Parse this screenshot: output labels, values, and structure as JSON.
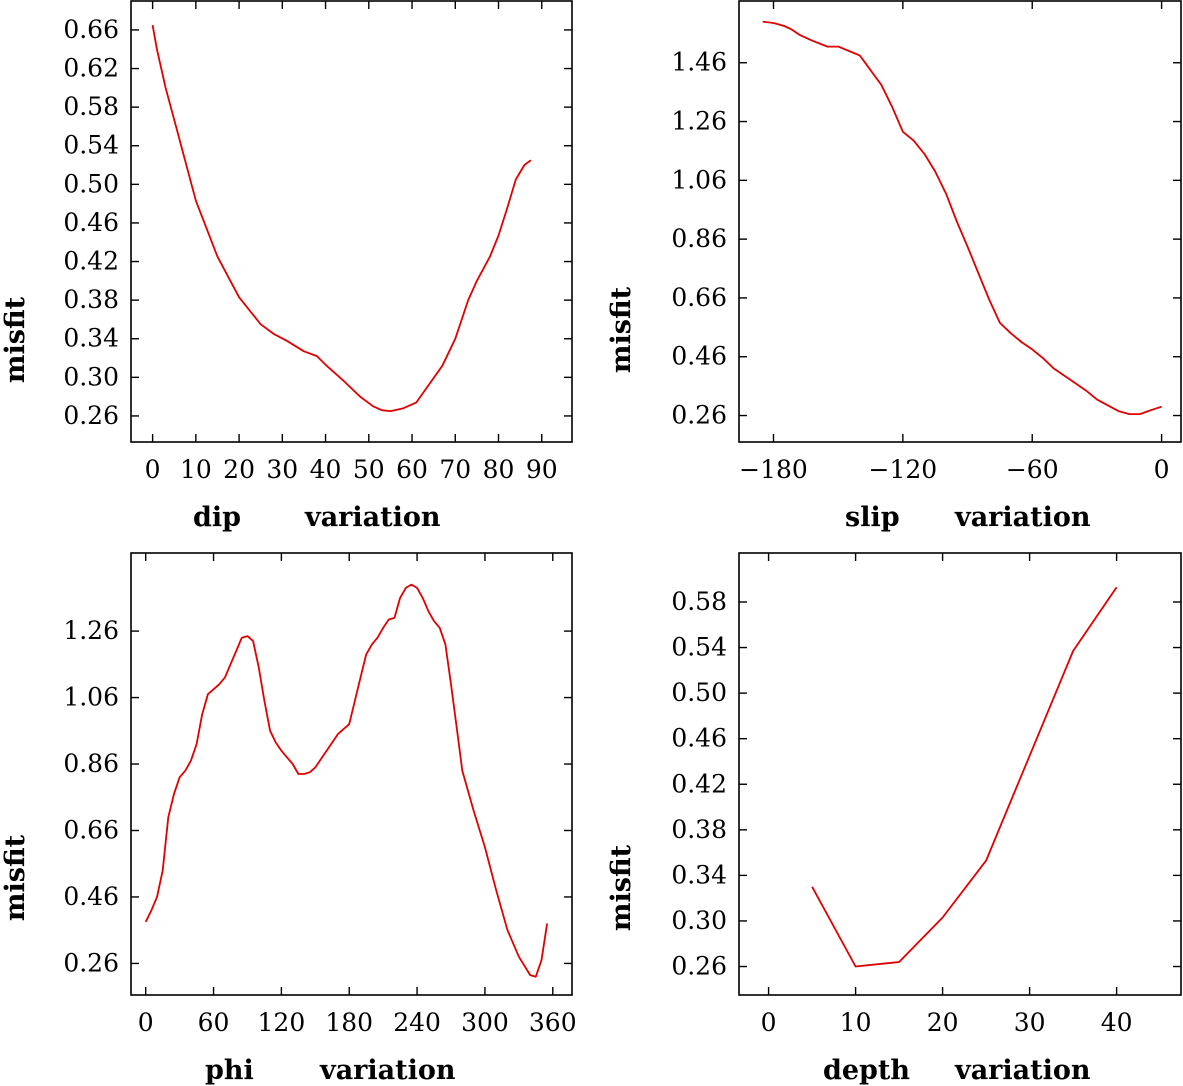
{
  "chart_data": [
    {
      "type": "line",
      "id": "dip",
      "xlabel_left": "dip",
      "xlabel_right": "variation",
      "ylabel": "misfit",
      "xlim": [
        -5,
        97
      ],
      "ylim": [
        0.233,
        0.69
      ],
      "xticks": [
        0,
        10,
        20,
        30,
        40,
        50,
        60,
        70,
        80,
        90
      ],
      "xticklabels": [
        "0",
        "10",
        "20",
        "30",
        "40",
        "50",
        "60",
        "70",
        "80",
        "90"
      ],
      "yticks": [
        0.26,
        0.3,
        0.34,
        0.38,
        0.42,
        0.46,
        0.5,
        0.54,
        0.58,
        0.62,
        0.66
      ],
      "yticklabels": [
        "0.26",
        "0.30",
        "0.34",
        "0.38",
        "0.42",
        "0.46",
        "0.50",
        "0.54",
        "0.58",
        "0.62",
        "0.66"
      ],
      "series": [
        {
          "name": "misfit",
          "color": "#e00000",
          "x": [
            0,
            1,
            3,
            6,
            10,
            15,
            20,
            25,
            28,
            31,
            35,
            38,
            40,
            44,
            48,
            51,
            53,
            55,
            56,
            58,
            61,
            64,
            67,
            70,
            73,
            75,
            78,
            80,
            82,
            84,
            86,
            87.5
          ],
          "y": [
            0.665,
            0.64,
            0.6,
            0.55,
            0.483,
            0.425,
            0.383,
            0.355,
            0.345,
            0.338,
            0.327,
            0.322,
            0.313,
            0.297,
            0.28,
            0.27,
            0.266,
            0.265,
            0.266,
            0.268,
            0.274,
            0.293,
            0.312,
            0.34,
            0.38,
            0.4,
            0.425,
            0.447,
            0.475,
            0.505,
            0.52,
            0.525
          ]
        }
      ]
    },
    {
      "type": "line",
      "id": "slip",
      "xlabel_left": "slip",
      "xlabel_right": "variation",
      "ylabel": "misfit",
      "xlim": [
        -196,
        9
      ],
      "ylim": [
        0.17,
        1.67
      ],
      "xticks": [
        -180,
        -120,
        -60,
        0
      ],
      "xticklabels": [
        "−180",
        "−120",
        "−60",
        "0"
      ],
      "yticks": [
        0.26,
        0.46,
        0.66,
        0.86,
        1.06,
        1.26,
        1.46
      ],
      "yticklabels": [
        "0.26",
        "0.46",
        "0.66",
        "0.86",
        "1.06",
        "1.26",
        "1.46"
      ],
      "series": [
        {
          "name": "misfit",
          "color": "#e00000",
          "x": [
            -185,
            -180,
            -175,
            -172,
            -168,
            -162,
            -155,
            -150,
            -145,
            -140,
            -137,
            -133,
            -130,
            -125,
            -120,
            -115,
            -110,
            -105,
            -100,
            -95,
            -90,
            -85,
            -80,
            -75,
            -70,
            -65,
            -60,
            -55,
            -50,
            -45,
            -40,
            -35,
            -30,
            -25,
            -20,
            -15,
            -10,
            -5,
            0
          ],
          "y": [
            1.6,
            1.595,
            1.585,
            1.575,
            1.555,
            1.535,
            1.515,
            1.515,
            1.5,
            1.485,
            1.455,
            1.415,
            1.385,
            1.31,
            1.225,
            1.195,
            1.15,
            1.09,
            1.015,
            0.92,
            0.835,
            0.745,
            0.655,
            0.575,
            0.54,
            0.51,
            0.485,
            0.455,
            0.42,
            0.395,
            0.37,
            0.345,
            0.315,
            0.295,
            0.275,
            0.265,
            0.265,
            0.278,
            0.29
          ]
        }
      ]
    },
    {
      "type": "line",
      "id": "phi",
      "xlabel_left": "phi",
      "xlabel_right": "variation",
      "ylabel": "misfit",
      "xlim": [
        -13,
        377
      ],
      "ylim": [
        0.165,
        1.495
      ],
      "xticks": [
        0,
        60,
        120,
        180,
        240,
        300,
        360
      ],
      "xticklabels": [
        "0",
        "60",
        "120",
        "180",
        "240",
        "300",
        "360"
      ],
      "yticks": [
        0.26,
        0.46,
        0.66,
        0.86,
        1.06,
        1.26
      ],
      "yticklabels": [
        "0.26",
        "0.46",
        "0.66",
        "0.86",
        "1.06",
        "1.26"
      ],
      "series": [
        {
          "name": "misfit",
          "color": "#e00000",
          "x": [
            0,
            5,
            10,
            15,
            20,
            25,
            30,
            35,
            40,
            45,
            50,
            55,
            60,
            65,
            70,
            75,
            80,
            85,
            90,
            95,
            100,
            105,
            110,
            115,
            120,
            125,
            130,
            135,
            140,
            145,
            150,
            160,
            170,
            180,
            190,
            195,
            200,
            205,
            210,
            215,
            220,
            225,
            230,
            235,
            240,
            245,
            250,
            255,
            260,
            265,
            270,
            275,
            280,
            290,
            300,
            310,
            320,
            330,
            340,
            345,
            350,
            355
          ],
          "y": [
            0.385,
            0.42,
            0.46,
            0.54,
            0.7,
            0.77,
            0.82,
            0.84,
            0.87,
            0.92,
            1.01,
            1.07,
            1.085,
            1.1,
            1.12,
            1.16,
            1.2,
            1.24,
            1.245,
            1.23,
            1.15,
            1.05,
            0.96,
            0.925,
            0.9,
            0.88,
            0.86,
            0.83,
            0.83,
            0.835,
            0.85,
            0.9,
            0.95,
            0.98,
            1.12,
            1.19,
            1.22,
            1.24,
            1.27,
            1.295,
            1.3,
            1.36,
            1.39,
            1.4,
            1.39,
            1.36,
            1.32,
            1.29,
            1.27,
            1.22,
            1.1,
            0.97,
            0.84,
            0.72,
            0.61,
            0.48,
            0.36,
            0.28,
            0.225,
            0.22,
            0.27,
            0.38
          ]
        }
      ]
    },
    {
      "type": "line",
      "id": "depth",
      "xlabel_left": "depth",
      "xlabel_right": "variation",
      "ylabel": "misfit",
      "xlim": [
        -3.4,
        47.4
      ],
      "ylim": [
        0.235,
        0.623
      ],
      "xticks": [
        0,
        10,
        20,
        30,
        40
      ],
      "xticklabels": [
        "0",
        "10",
        "20",
        "30",
        "40"
      ],
      "yticks": [
        0.26,
        0.3,
        0.34,
        0.38,
        0.42,
        0.46,
        0.5,
        0.54,
        0.58
      ],
      "yticklabels": [
        "0.26",
        "0.30",
        "0.34",
        "0.38",
        "0.42",
        "0.46",
        "0.50",
        "0.54",
        "0.58"
      ],
      "series": [
        {
          "name": "misfit",
          "color": "#e00000",
          "x": [
            5,
            10,
            15,
            20,
            25,
            30,
            35,
            40
          ],
          "y": [
            0.33,
            0.26,
            0.264,
            0.303,
            0.353,
            0.445,
            0.537,
            0.593
          ]
        }
      ]
    }
  ]
}
